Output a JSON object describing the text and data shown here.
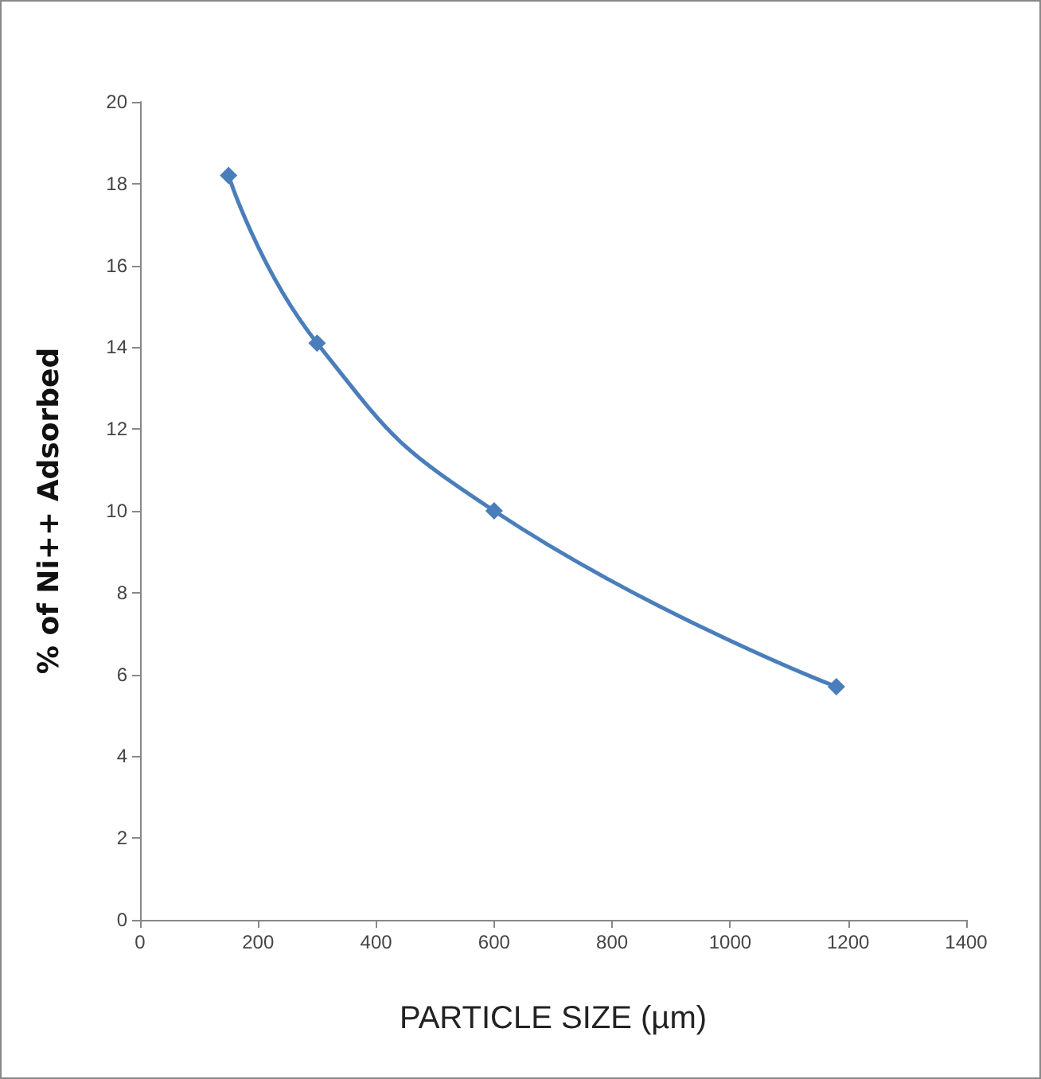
{
  "chart_data": {
    "type": "line",
    "xlabel": "PARTICLE SIZE (µm)",
    "ylabel": "% of Ni++ Adsorbed",
    "x": [
      150,
      300,
      600,
      1180
    ],
    "series": [
      {
        "color": "#4a7ebb",
        "values": [
          18.2,
          14.1,
          10.0,
          5.7
        ]
      }
    ],
    "xlim": [
      0,
      1400
    ],
    "xticks": [
      0,
      200,
      400,
      600,
      800,
      1000,
      1200,
      1400
    ],
    "ylim": [
      0,
      20
    ],
    "yticks": [
      0,
      2,
      4,
      6,
      8,
      10,
      12,
      14,
      16,
      18,
      20
    ],
    "grid": false,
    "marker": "diamond",
    "line_style": "solid"
  }
}
